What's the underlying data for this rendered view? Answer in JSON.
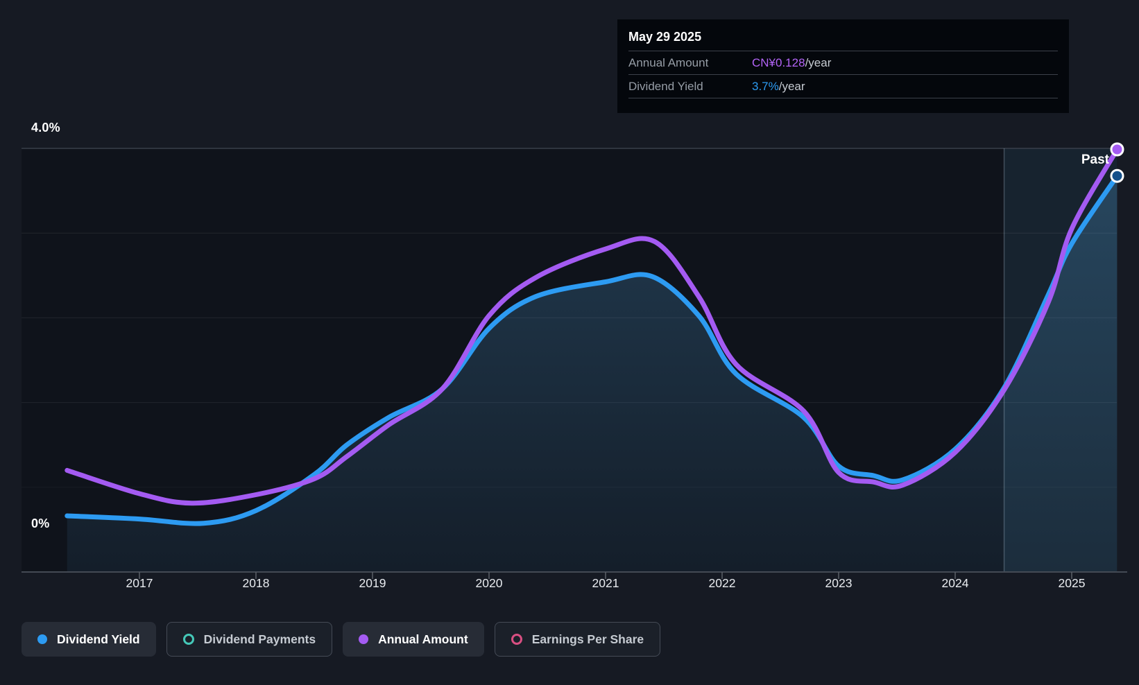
{
  "tooltip": {
    "date": "May 29 2025",
    "rows": [
      {
        "label": "Annual Amount",
        "value": "CN¥0.128",
        "suffix": "/year",
        "color": "#b364f6"
      },
      {
        "label": "Dividend Yield",
        "value": "3.7%",
        "suffix": "/year",
        "color": "#2d9bf2"
      }
    ]
  },
  "colors": {
    "dividend_yield_blue": "#2d9bf2",
    "annual_amount_purple": "#a45bf2",
    "dividend_payments_teal": "#45c8b8",
    "earnings_per_share_pink": "#d94f82",
    "grid_top_line": "#39404b",
    "axis_line": "#444a54",
    "page_background": "#161a23",
    "plot_background": "#0f131b",
    "tooltip_background": "#04070c"
  },
  "chart_data": {
    "type": "line",
    "past_label": "Past",
    "past_divider_year": 2024.42,
    "x_axis": {
      "ticks": [
        "2017",
        "2018",
        "2019",
        "2020",
        "2021",
        "2022",
        "2023",
        "2024",
        "2025"
      ],
      "range": [
        2016.2,
        2025.45
      ]
    },
    "y_axis": {
      "top_label": "4.0%",
      "zero_label": "0%",
      "unit": "percent",
      "range": [
        0,
        4.0
      ],
      "gridline_values": [
        4.0,
        3.2,
        2.4,
        1.6,
        0.8
      ]
    },
    "series": [
      {
        "name": "Dividend Yield",
        "color": "#2d9bf2",
        "area": true,
        "end_marker": "ring",
        "current_value": "3.7%/year",
        "points": [
          [
            2016.38,
            0.53
          ],
          [
            2017.0,
            0.5
          ],
          [
            2017.55,
            0.46
          ],
          [
            2018.0,
            0.58
          ],
          [
            2018.5,
            0.92
          ],
          [
            2018.78,
            1.2
          ],
          [
            2019.14,
            1.46
          ],
          [
            2019.6,
            1.73
          ],
          [
            2020.0,
            2.3
          ],
          [
            2020.4,
            2.6
          ],
          [
            2021.0,
            2.74
          ],
          [
            2021.4,
            2.79
          ],
          [
            2021.8,
            2.42
          ],
          [
            2022.12,
            1.87
          ],
          [
            2022.7,
            1.46
          ],
          [
            2023.0,
            1.0
          ],
          [
            2023.3,
            0.91
          ],
          [
            2023.55,
            0.87
          ],
          [
            2024.0,
            1.16
          ],
          [
            2024.42,
            1.74
          ],
          [
            2024.8,
            2.62
          ],
          [
            2025.0,
            3.1
          ],
          [
            2025.39,
            3.74
          ]
        ]
      },
      {
        "name": "Annual Amount",
        "color": "#a45bf2",
        "area": false,
        "end_marker": "filled",
        "current_value": "CN¥0.128/year",
        "points": [
          [
            2016.38,
            0.96
          ],
          [
            2017.0,
            0.74
          ],
          [
            2017.45,
            0.65
          ],
          [
            2018.0,
            0.73
          ],
          [
            2018.5,
            0.88
          ],
          [
            2018.78,
            1.09
          ],
          [
            2019.14,
            1.39
          ],
          [
            2019.6,
            1.73
          ],
          [
            2020.0,
            2.42
          ],
          [
            2020.4,
            2.78
          ],
          [
            2021.0,
            3.05
          ],
          [
            2021.42,
            3.12
          ],
          [
            2021.8,
            2.6
          ],
          [
            2022.12,
            1.96
          ],
          [
            2022.7,
            1.52
          ],
          [
            2023.0,
            0.94
          ],
          [
            2023.3,
            0.85
          ],
          [
            2023.55,
            0.82
          ],
          [
            2024.0,
            1.13
          ],
          [
            2024.42,
            1.72
          ],
          [
            2024.8,
            2.55
          ],
          [
            2025.0,
            3.24
          ],
          [
            2025.39,
            3.99
          ]
        ]
      }
    ]
  },
  "legend": [
    {
      "label": "Dividend Yield",
      "color": "#2d9bf2",
      "marker": "filled",
      "active": true
    },
    {
      "label": "Dividend Payments",
      "color": "#45c8b8",
      "marker": "ring",
      "active": false
    },
    {
      "label": "Annual Amount",
      "color": "#a45bf2",
      "marker": "filled",
      "active": true
    },
    {
      "label": "Earnings Per Share",
      "color": "#d94f82",
      "marker": "ring",
      "active": false
    }
  ]
}
